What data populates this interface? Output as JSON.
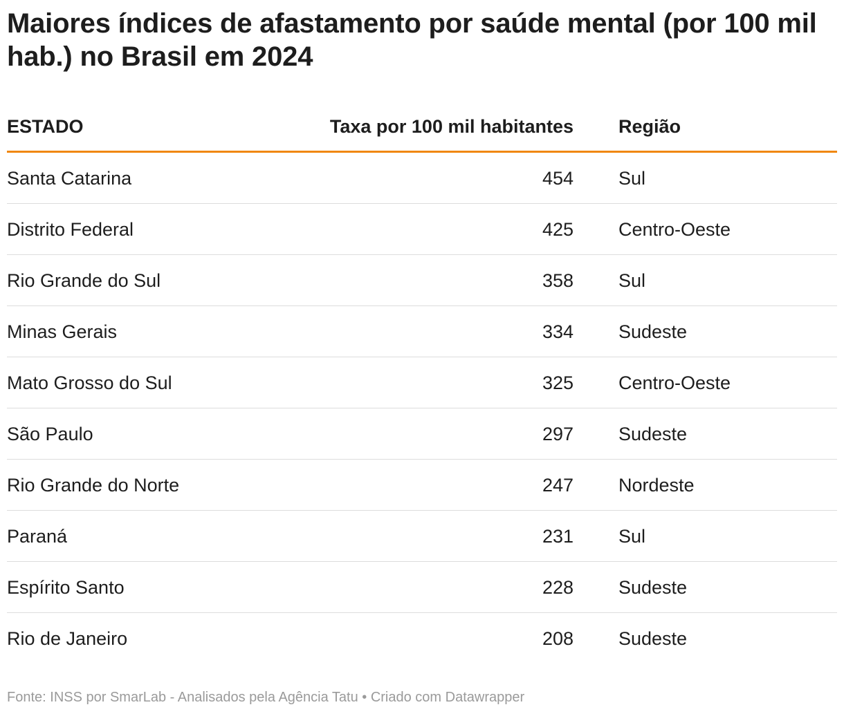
{
  "title": "Maiores índices de afastamento por saúde mental (por 100 mil hab.) no Brasil em 2024",
  "headers": {
    "state": "ESTADO",
    "rate": "Taxa por 100 mil habitantes",
    "region": "Região"
  },
  "rows": [
    {
      "state": "Santa Catarina",
      "rate": "454",
      "region": "Sul"
    },
    {
      "state": "Distrito Federal",
      "rate": "425",
      "region": "Centro-Oeste"
    },
    {
      "state": "Rio Grande do Sul",
      "rate": "358",
      "region": "Sul"
    },
    {
      "state": "Minas Gerais",
      "rate": "334",
      "region": "Sudeste"
    },
    {
      "state": "Mato Grosso do Sul",
      "rate": "325",
      "region": "Centro-Oeste"
    },
    {
      "state": "São Paulo",
      "rate": "297",
      "region": "Sudeste"
    },
    {
      "state": "Rio Grande do Norte",
      "rate": "247",
      "region": "Nordeste"
    },
    {
      "state": "Paraná",
      "rate": "231",
      "region": "Sul"
    },
    {
      "state": "Espírito Santo",
      "rate": "228",
      "region": "Sudeste"
    },
    {
      "state": "Rio de Janeiro",
      "rate": "208",
      "region": "Sudeste"
    }
  ],
  "footer": "Fonte: INSS por SmarLab - Analisados pela Agência Tatu • Criado com Datawrapper",
  "colors": {
    "accent": "#f0870e",
    "text": "#1d1d1d",
    "divider": "#dcdcdc",
    "footer": "#9a9a9a"
  },
  "chart_data": {
    "type": "table",
    "title": "Maiores índices de afastamento por saúde mental (por 100 mil hab.) no Brasil em 2024",
    "columns": [
      "ESTADO",
      "Taxa por 100 mil habitantes",
      "Região"
    ],
    "categories": [
      "Santa Catarina",
      "Distrito Federal",
      "Rio Grande do Sul",
      "Minas Gerais",
      "Mato Grosso do Sul",
      "São Paulo",
      "Rio Grande do Norte",
      "Paraná",
      "Espírito Santo",
      "Rio de Janeiro"
    ],
    "values": [
      454,
      425,
      358,
      334,
      325,
      297,
      247,
      231,
      228,
      208
    ],
    "regions": [
      "Sul",
      "Centro-Oeste",
      "Sul",
      "Sudeste",
      "Centro-Oeste",
      "Sudeste",
      "Nordeste",
      "Sul",
      "Sudeste",
      "Sudeste"
    ]
  }
}
